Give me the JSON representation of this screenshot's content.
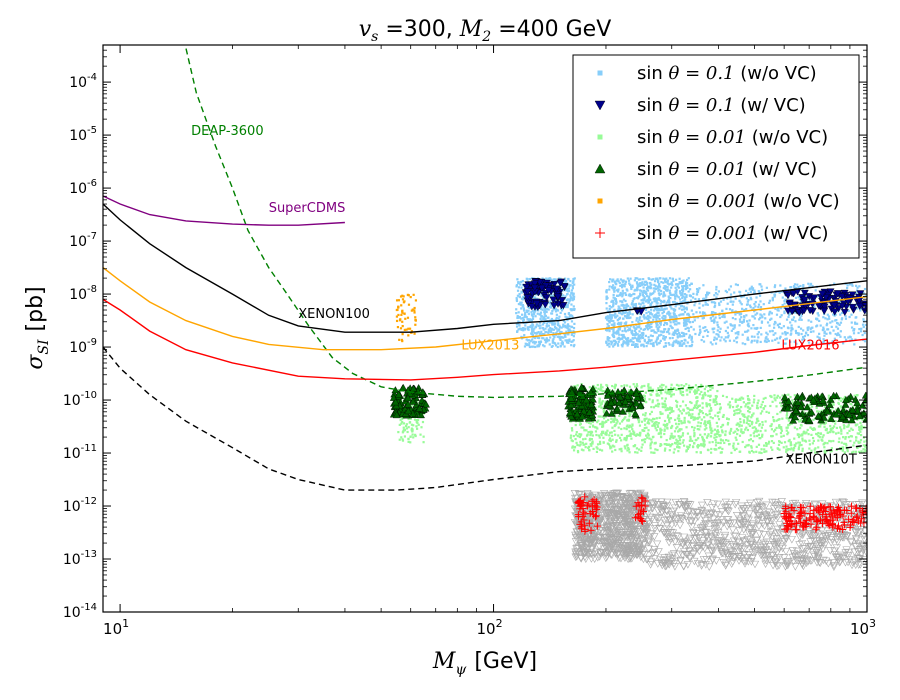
{
  "chart_data": {
    "type": "scatter",
    "title": {
      "math": "v",
      "sub": "s",
      "mid1": " =300, ",
      "math2": "M",
      "sub2": "2",
      "mid2": " =400 ",
      "unit": "GeV"
    },
    "title_text": "v_s =300, M_2 =400 GeV",
    "xlabel": {
      "math": "M",
      "sub": "ψ",
      "unit": "[GeV]"
    },
    "ylabel": {
      "math": "σ",
      "sub": "SI",
      "unit": "[pb]"
    },
    "xscale": "log",
    "yscale": "log",
    "xlim": [
      9,
      1000
    ],
    "ylim_exp": [
      -14,
      -3.3
    ],
    "x_ticks": [
      {
        "value": 10,
        "base": "10",
        "exp": "1"
      },
      {
        "value": 100,
        "base": "10",
        "exp": "2"
      },
      {
        "value": 1000,
        "base": "10",
        "exp": "3"
      }
    ],
    "y_ticks": [
      {
        "exp": -14,
        "base": "10",
        "label": "-14"
      },
      {
        "exp": -13,
        "base": "10",
        "label": "-13"
      },
      {
        "exp": -12,
        "base": "10",
        "label": "-12"
      },
      {
        "exp": -11,
        "base": "10",
        "label": "-11"
      },
      {
        "exp": -10,
        "base": "10",
        "label": "-10"
      },
      {
        "exp": -9,
        "base": "10",
        "label": "-9"
      },
      {
        "exp": -8,
        "base": "10",
        "label": "-8"
      },
      {
        "exp": -7,
        "base": "10",
        "label": "-7"
      },
      {
        "exp": -6,
        "base": "10",
        "label": "-6"
      },
      {
        "exp": -5,
        "base": "10",
        "label": "-5"
      },
      {
        "exp": -4,
        "base": "10",
        "label": "-4"
      }
    ],
    "curves": [
      {
        "name": "DEAP-3600",
        "color": "#008000",
        "dash": true,
        "points": [
          [
            14.6,
            -3.0
          ],
          [
            16,
            -4.2
          ],
          [
            18,
            -5.2
          ],
          [
            20,
            -6.0
          ],
          [
            22,
            -6.8
          ],
          [
            25,
            -7.5
          ],
          [
            28,
            -8.0
          ],
          [
            32,
            -8.6
          ],
          [
            37,
            -9.2
          ],
          [
            42,
            -9.5
          ],
          [
            50,
            -9.75
          ],
          [
            60,
            -9.85
          ],
          [
            80,
            -9.93
          ],
          [
            100,
            -9.95
          ],
          [
            150,
            -9.93
          ],
          [
            200,
            -9.88
          ],
          [
            300,
            -9.8
          ],
          [
            500,
            -9.65
          ],
          [
            700,
            -9.53
          ],
          [
            1000,
            -9.38
          ]
        ]
      },
      {
        "name": "SuperCDMS",
        "color": "#800080",
        "dash": false,
        "points": [
          [
            9,
            -6.15
          ],
          [
            10,
            -6.3
          ],
          [
            12,
            -6.5
          ],
          [
            15,
            -6.62
          ],
          [
            20,
            -6.68
          ],
          [
            25,
            -6.7
          ],
          [
            30,
            -6.7
          ],
          [
            40,
            -6.65
          ]
        ]
      },
      {
        "name": "XENON100",
        "color": "#000000",
        "dash": false,
        "points": [
          [
            9,
            -6.3
          ],
          [
            10,
            -6.6
          ],
          [
            12,
            -7.05
          ],
          [
            15,
            -7.5
          ],
          [
            20,
            -8.0
          ],
          [
            25,
            -8.4
          ],
          [
            30,
            -8.6
          ],
          [
            40,
            -8.72
          ],
          [
            60,
            -8.72
          ],
          [
            80,
            -8.65
          ],
          [
            100,
            -8.57
          ],
          [
            150,
            -8.5
          ],
          [
            200,
            -8.35
          ],
          [
            300,
            -8.2
          ],
          [
            500,
            -8.0
          ],
          [
            700,
            -7.88
          ],
          [
            1000,
            -7.75
          ]
        ]
      },
      {
        "name": "LUX2013",
        "color": "#ffa500",
        "dash": false,
        "points": [
          [
            9,
            -7.5
          ],
          [
            10,
            -7.75
          ],
          [
            12,
            -8.15
          ],
          [
            15,
            -8.5
          ],
          [
            20,
            -8.8
          ],
          [
            25,
            -8.95
          ],
          [
            35,
            -9.05
          ],
          [
            50,
            -9.05
          ],
          [
            70,
            -9.0
          ],
          [
            100,
            -8.88
          ],
          [
            150,
            -8.75
          ],
          [
            200,
            -8.65
          ],
          [
            300,
            -8.48
          ],
          [
            500,
            -8.3
          ],
          [
            700,
            -8.18
          ],
          [
            1000,
            -8.05
          ]
        ]
      },
      {
        "name": "LUX2016",
        "color": "#ff0000",
        "dash": false,
        "points": [
          [
            9,
            -8.1
          ],
          [
            10,
            -8.3
          ],
          [
            12,
            -8.7
          ],
          [
            15,
            -9.05
          ],
          [
            20,
            -9.3
          ],
          [
            30,
            -9.55
          ],
          [
            40,
            -9.6
          ],
          [
            60,
            -9.62
          ],
          [
            80,
            -9.57
          ],
          [
            100,
            -9.52
          ],
          [
            150,
            -9.45
          ],
          [
            200,
            -9.38
          ],
          [
            300,
            -9.25
          ],
          [
            500,
            -9.1
          ],
          [
            700,
            -8.97
          ],
          [
            1000,
            -8.85
          ]
        ]
      },
      {
        "name": "XENON10T",
        "color": "#000000",
        "dash": true,
        "points": [
          [
            9,
            -9.0
          ],
          [
            10,
            -9.4
          ],
          [
            12,
            -9.9
          ],
          [
            15,
            -10.4
          ],
          [
            20,
            -10.9
          ],
          [
            25,
            -11.3
          ],
          [
            30,
            -11.5
          ],
          [
            40,
            -11.7
          ],
          [
            55,
            -11.7
          ],
          [
            70,
            -11.65
          ],
          [
            100,
            -11.5
          ],
          [
            150,
            -11.35
          ],
          [
            200,
            -11.3
          ],
          [
            300,
            -11.25
          ],
          [
            500,
            -11.15
          ],
          [
            700,
            -11.0
          ],
          [
            1000,
            -10.85
          ]
        ]
      }
    ],
    "curve_labels": [
      {
        "text": "DEAP-3600",
        "color": "#008000",
        "x": 15.5,
        "y": -5.0
      },
      {
        "text": "SuperCDMS",
        "color": "#800080",
        "x": 25,
        "y": -6.45
      },
      {
        "text": "XENON100",
        "color": "#000000",
        "x": 30,
        "y": -8.45
      },
      {
        "text": "LUX2013",
        "color": "#ffa500",
        "x": 82,
        "y": -9.05
      },
      {
        "text": "LUX2016",
        "color": "#ff0000",
        "x": 590,
        "y": -9.05
      },
      {
        "text": "XENON10T",
        "color": "#000000",
        "x": 605,
        "y": -11.2
      }
    ],
    "scatter_regions": [
      {
        "series": 4,
        "x": [
          55,
          62
        ],
        "y": [
          -8.0,
          -8.9
        ],
        "n": 60
      },
      {
        "series": 0,
        "x": [
          115,
          165
        ],
        "y": [
          -7.7,
          -9.0
        ],
        "n": 700
      },
      {
        "series": 0,
        "x": [
          200,
          340
        ],
        "y": [
          -7.7,
          -9.0
        ],
        "n": 1000
      },
      {
        "series": 0,
        "x": [
          340,
          1000
        ],
        "y": [
          -7.8,
          -8.95
        ],
        "n": 700
      },
      {
        "series": 1,
        "x": [
          122,
          155
        ],
        "y": [
          -7.75,
          -8.25
        ],
        "n": 80
      },
      {
        "series": 1,
        "x": [
          240,
          250
        ],
        "y": [
          -8.3,
          -8.35
        ],
        "n": 4
      },
      {
        "series": 1,
        "x": [
          600,
          1000
        ],
        "y": [
          -7.95,
          -8.35
        ],
        "n": 90
      },
      {
        "series": 2,
        "x": [
          55,
          65
        ],
        "y": [
          -9.8,
          -10.8
        ],
        "n": 120
      },
      {
        "series": 2,
        "x": [
          160,
          400
        ],
        "y": [
          -9.7,
          -11.0
        ],
        "n": 1000
      },
      {
        "series": 2,
        "x": [
          400,
          1000
        ],
        "y": [
          -9.9,
          -11.0
        ],
        "n": 700
      },
      {
        "series": 3,
        "x": [
          54,
          66
        ],
        "y": [
          -9.75,
          -10.3
        ],
        "n": 90
      },
      {
        "series": 3,
        "x": [
          158,
          185
        ],
        "y": [
          -9.75,
          -10.35
        ],
        "n": 90
      },
      {
        "series": 3,
        "x": [
          200,
          250
        ],
        "y": [
          -9.8,
          -10.3
        ],
        "n": 60
      },
      {
        "series": 3,
        "x": [
          600,
          1000
        ],
        "y": [
          -9.9,
          -10.4
        ],
        "n": 100
      },
      {
        "series": 6,
        "x": [
          165,
          255
        ],
        "y": [
          -11.75,
          -13.0
        ],
        "n": 700
      },
      {
        "series": 6,
        "x": [
          255,
          1000
        ],
        "y": [
          -11.9,
          -13.15
        ],
        "n": 800
      },
      {
        "series": 5,
        "x": [
          168,
          190
        ],
        "y": [
          -11.8,
          -12.5
        ],
        "n": 50
      },
      {
        "series": 5,
        "x": [
          240,
          255
        ],
        "y": [
          -11.8,
          -12.3
        ],
        "n": 20
      },
      {
        "series": 5,
        "x": [
          600,
          1000
        ],
        "y": [
          -12.0,
          -12.45
        ],
        "n": 140
      }
    ],
    "legend": {
      "placement": "top-right",
      "entries": [
        {
          "prefix": "sin",
          "var": "θ",
          "value": " = 0.1",
          "suffix": "(w/o VC)",
          "marker": "square",
          "color": "#87cefa"
        },
        {
          "prefix": "sin",
          "var": "θ",
          "value": " = 0.1",
          "suffix": "(w/ VC)",
          "marker": "triangle-down",
          "color": "#00008b"
        },
        {
          "prefix": "sin",
          "var": "θ",
          "value": " = 0.01",
          "suffix": "(w/o VC)",
          "marker": "square",
          "color": "#98fb98"
        },
        {
          "prefix": "sin",
          "var": "θ",
          "value": " = 0.01",
          "suffix": "(w/ VC)",
          "marker": "triangle-up",
          "color": "#006400"
        },
        {
          "prefix": "sin",
          "var": "θ",
          "value": " = 0.001",
          "suffix": "(w/o VC)",
          "marker": "square",
          "color": "#ffa500"
        },
        {
          "prefix": "sin",
          "var": "θ",
          "value": " = 0.001",
          "suffix": "(w/ VC)",
          "marker": "plus",
          "color": "#ff0000"
        }
      ]
    },
    "extra_series_color": "#a9a9a9"
  }
}
